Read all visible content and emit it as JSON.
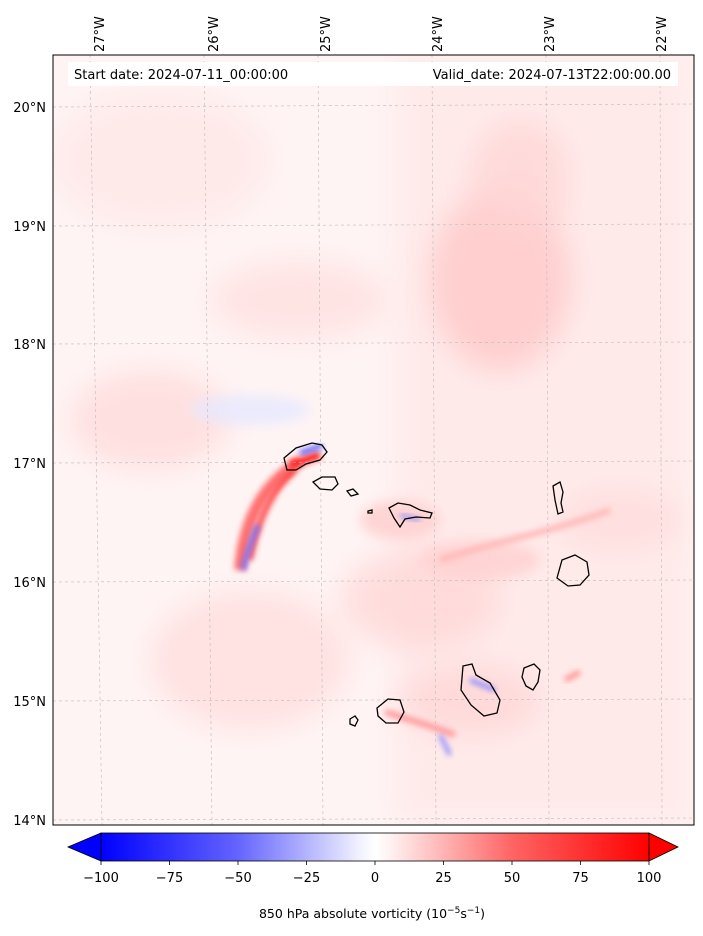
{
  "map": {
    "start_label": "Start date: 2024-07-11_00:00:00",
    "valid_label": "Valid_date: 2024-07-13T22:00:00.00",
    "lon_labels": [
      "27°W",
      "26°W",
      "25°W",
      "24°W",
      "23°W",
      "22°W"
    ],
    "lat_labels": [
      "20°N",
      "19°N",
      "18°N",
      "17°N",
      "16°N",
      "15°N",
      "14°N"
    ],
    "colorbar": {
      "ticks": [
        "−100",
        "−75",
        "−50",
        "−25",
        "0",
        "25",
        "50",
        "75",
        "100"
      ],
      "label_main": "850 hPa absolute vorticity (10",
      "label_exp1": "−5",
      "label_mid": "s",
      "label_exp2": "−1",
      "label_end": ")"
    },
    "colors": {
      "negative": "#0000ff",
      "neutral": "#ffffff",
      "positive": "#ff0000",
      "background_tint": "#ffeeee"
    }
  }
}
